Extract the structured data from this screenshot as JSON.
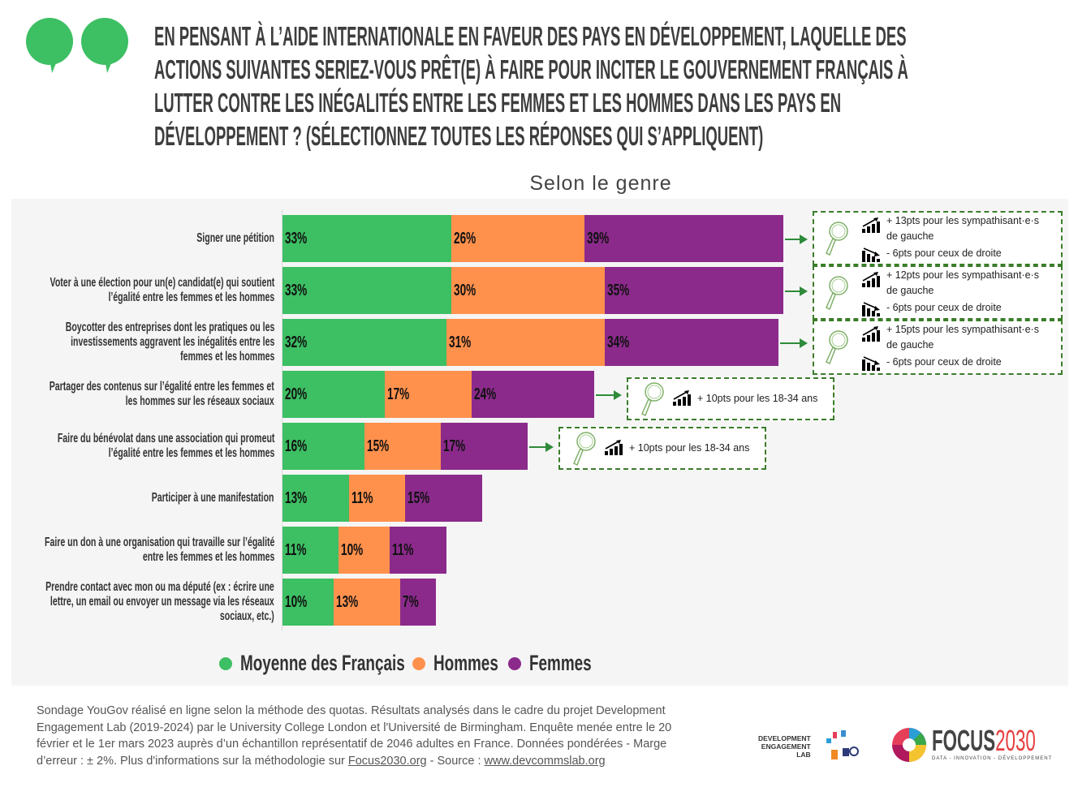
{
  "title": "EN PENSANT À L’AIDE INTERNATIONALE EN FAVEUR DES PAYS EN DÉVELOPPEMENT, LAQUELLE DES\nACTIONS SUIVANTES SERIEZ-VOUS PRÊT(E) À FAIRE POUR INCITER LE GOUVERNEMENT FRANÇAIS À\nLUTTER CONTRE LES INÉGALITÉS ENTRE LES FEMMES ET LES HOMMES DANS LES PAYS EN\nDÉVELOPPEMENT ? (SÉLECTIONNEZ TOUTES LES RÉPONSES QUI S’APPLIQUENT)",
  "colors": {
    "moyenne": "#3dbf63",
    "hommes": "#ff914d",
    "femmes": "#8b2a8b",
    "accent": "#3dbf63"
  },
  "chart_data": {
    "type": "bar",
    "orientation": "horizontal-stacked",
    "subtitle": "Selon le genre",
    "categories": [
      "Signer une pétition",
      "Voter à une élection pour un(e) candidat(e) qui soutient\nl’égalité entre les femmes et les hommes",
      "Boycotter des entreprises dont les pratiques ou les\ninvestissements aggravent les inégalités entre les\nfemmes et les hommes",
      "Partager des contenus sur l’égalité entre les femmes et\nles hommes sur les réseaux sociaux",
      "Faire du bénévolat dans une association qui promeut\nl’égalité entre les femmes et les hommes",
      "Participer à une manifestation",
      "Faire un don à une organisation qui travaille sur l’égalité\nentre les femmes et les hommes",
      "Prendre contact avec mon ou ma député (ex : écrire une\nlettre, un email ou envoyer un message via les réseaux\nsociaux, etc.)"
    ],
    "series": [
      {
        "name": "Moyenne des Français",
        "values": [
          33,
          33,
          32,
          20,
          16,
          13,
          11,
          10
        ]
      },
      {
        "name": "Hommes",
        "values": [
          26,
          30,
          31,
          17,
          15,
          11,
          10,
          13
        ]
      },
      {
        "name": "Femmes",
        "values": [
          39,
          35,
          34,
          24,
          17,
          15,
          11,
          7
        ]
      }
    ],
    "value_suffix": "%",
    "legend_position": "bottom",
    "annotations": [
      {
        "row": 0,
        "up": "+ 13pts pour les sympathisant·e·s",
        "up2": "de gauche",
        "down": " - 6pts pour ceux de droite"
      },
      {
        "row": 1,
        "up": "+ 12pts pour les sympathisant·e·s",
        "up2": "de gauche",
        "down": "- 6pts pour ceux de droite"
      },
      {
        "row": 2,
        "up": "+ 15pts pour les sympathisant·e·s",
        "up2": "de gauche",
        "down": "- 6pts pour ceux de droite"
      },
      {
        "row": 3,
        "up": "+ 10pts pour les 18-34 ans"
      },
      {
        "row": 4,
        "up": "+ 10pts pour les 18-34 ans"
      }
    ]
  },
  "footer": {
    "text1": "Sondage YouGov réalisé en ligne selon la méthode des quotas. Résultats analysés dans le cadre du projet Development Engagement Lab (2019-2024) par le University College London et l'Université de Birmingham. Enquête menée entre le 20 février et le 1er mars 2023 auprès d’un échantillon représentatif de 2046 adultes en France. Données pondérées - Marge d’erreur : ± 2%. Plus d'informations sur la méthodologie sur ",
    "link1": "Focus2030.org",
    "text2": " - Source : ",
    "link2": "www.devcommslab.org"
  },
  "logos": {
    "del": "DEVELOPMENT\nENGAGEMENT\nLAB",
    "focus_a": "FOCUS",
    "focus_b": "2030",
    "focus_tag": "DATA - INNOVATION - DÉVELOPPEMENT"
  }
}
